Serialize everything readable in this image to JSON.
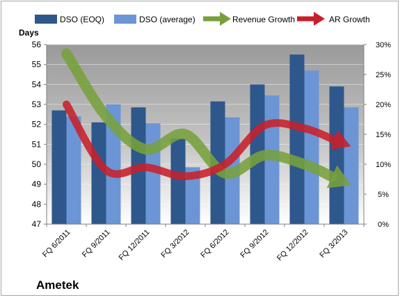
{
  "chart_data": {
    "type": "bar",
    "title": "Ametek",
    "ylabel": "Days",
    "categories": [
      "FQ 6/2011",
      "FQ 9/2011",
      "FQ 12/2011",
      "FQ 3/2012",
      "FQ 6/2012",
      "FQ 9/2012",
      "FQ 12/2012",
      "FQ 3/2013"
    ],
    "series": [
      {
        "name": "DSO (EOQ)",
        "kind": "bar",
        "axis": "left",
        "color": "#2e578c",
        "values": [
          52.7,
          52.1,
          52.85,
          51.3,
          53.15,
          54.0,
          55.5,
          53.9
        ]
      },
      {
        "name": "DSO (average)",
        "kind": "bar",
        "axis": "left",
        "color": "#6b95d4",
        "values": [
          52.4,
          53.0,
          52.05,
          49.85,
          52.35,
          53.45,
          54.7,
          52.85
        ]
      },
      {
        "name": "Revenue Growth",
        "kind": "arrow-line",
        "axis": "right",
        "color": "#77a03c",
        "values": [
          0.285,
          0.18,
          0.125,
          0.15,
          0.085,
          0.115,
          0.1,
          0.065
        ]
      },
      {
        "name": "AR Growth",
        "kind": "arrow-line",
        "axis": "right",
        "color": "#c8202a",
        "values": [
          0.2,
          0.09,
          0.095,
          0.08,
          0.1,
          0.165,
          0.16,
          0.13
        ]
      }
    ],
    "y_left": {
      "min": 47,
      "max": 56,
      "step": 1,
      "ticks": [
        "47",
        "48",
        "49",
        "50",
        "51",
        "52",
        "53",
        "54",
        "55",
        "56"
      ]
    },
    "y_right": {
      "min": 0,
      "max": 0.3,
      "step": 0.05,
      "ticks": [
        "0%",
        "5%",
        "10%",
        "15%",
        "20%",
        "25%",
        "30%"
      ]
    },
    "grid": true,
    "legend_position": "top",
    "plot_background": "#a8a8a8"
  }
}
